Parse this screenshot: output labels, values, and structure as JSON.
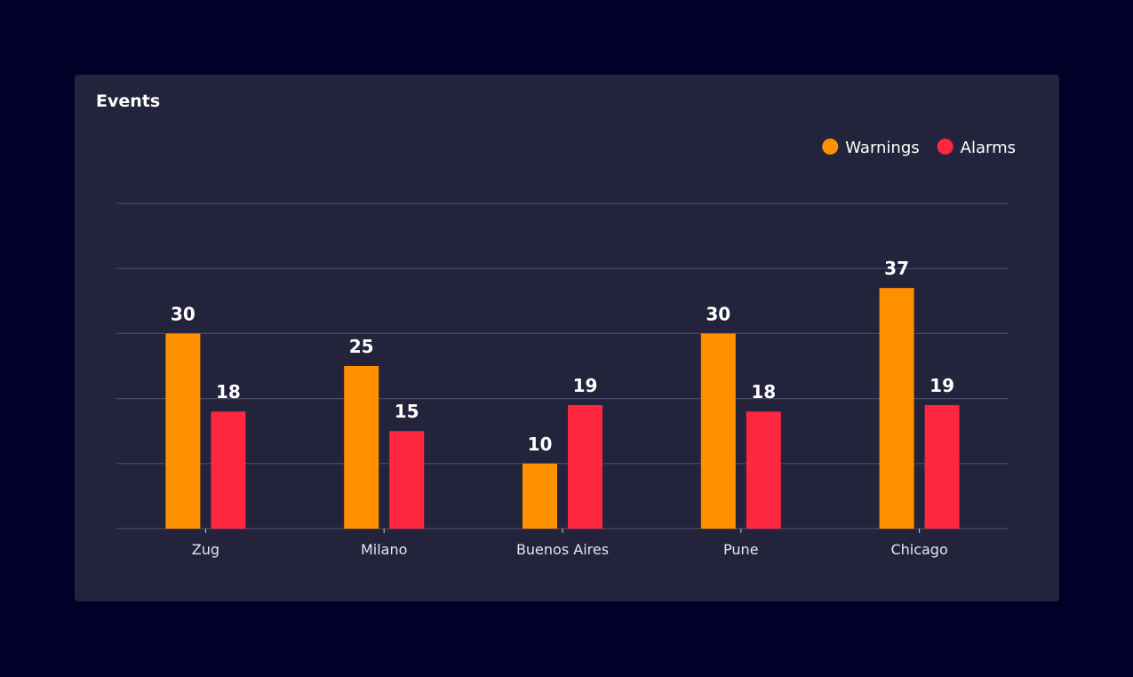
{
  "card": {
    "title": "Events"
  },
  "chart_data": {
    "type": "bar",
    "title": "Events",
    "categories": [
      "Zug",
      "Milano",
      "Buenos Aires",
      "Pune",
      "Chicago"
    ],
    "series": [
      {
        "name": "Warnings",
        "color": "#ff9000",
        "values": [
          30,
          25,
          10,
          30,
          37
        ]
      },
      {
        "name": "Alarms",
        "color": "#ff2640",
        "values": [
          18,
          15,
          19,
          18,
          19
        ]
      }
    ],
    "ylim": [
      0,
      50
    ],
    "ytick_step": 10,
    "ytick_labels_shown": false,
    "grid": true,
    "legend_position": "top-right",
    "data_labels": true
  }
}
